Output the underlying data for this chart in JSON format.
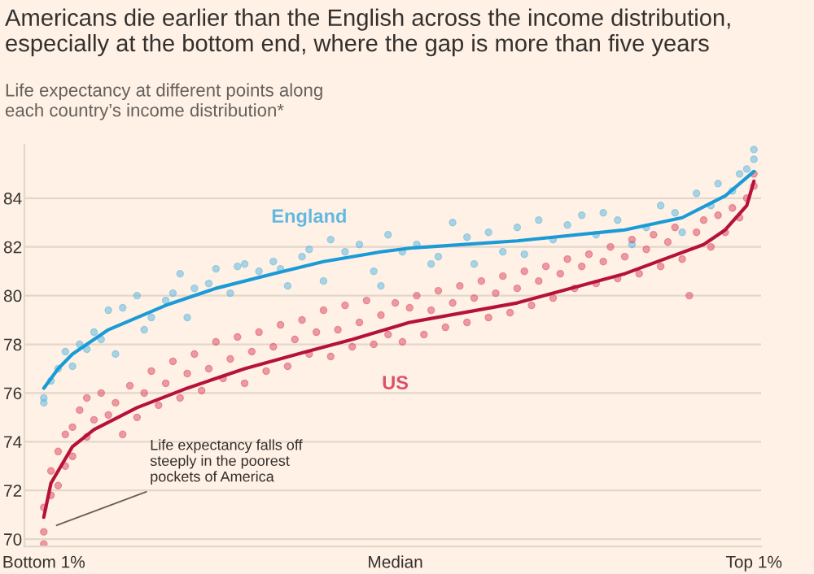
{
  "chart_data": {
    "type": "scatter",
    "title": "Americans die earlier than the English across the income distribution, especially at the bottom end, where the gap is more than five years",
    "subtitle": "Life expectancy at different points along\neach country’s income distribution*",
    "categories": [
      "Bottom 1%",
      null,
      null,
      null,
      null,
      null,
      null,
      null,
      null,
      null,
      null,
      null,
      null,
      null,
      null,
      null,
      null,
      null,
      null,
      null,
      null,
      null,
      null,
      null,
      null,
      null,
      null,
      null,
      null,
      null,
      null,
      null,
      null,
      null,
      null,
      null,
      null,
      null,
      null,
      null,
      null,
      null,
      null,
      null,
      null,
      null,
      null,
      null,
      null,
      "Median",
      null,
      null,
      null,
      null,
      null,
      null,
      null,
      null,
      null,
      null,
      null,
      null,
      null,
      null,
      null,
      null,
      null,
      null,
      null,
      null,
      null,
      null,
      null,
      null,
      null,
      null,
      null,
      null,
      null,
      null,
      null,
      null,
      null,
      null,
      null,
      null,
      null,
      null,
      null,
      null,
      null,
      null,
      null,
      null,
      null,
      null,
      null,
      null,
      null,
      "Top 1%"
    ],
    "ylim": [
      69.7,
      86.2
    ],
    "yticks": [
      70,
      72,
      74,
      76,
      78,
      80,
      82,
      84
    ],
    "grid": "y",
    "marker": "circle",
    "annotations": [
      "Life expectancy falls off\nsteeply in the poorest\npockets of America"
    ],
    "series": [
      {
        "name": "England",
        "color": "#62b8e0",
        "values": [
          75.6,
          76.5,
          77.0,
          77.7,
          77.1,
          78.0,
          77.8,
          78.5,
          78.2,
          79.4,
          77.6,
          79.5,
          null,
          80.0,
          78.6,
          79.1,
          null,
          79.8,
          80.1,
          80.9,
          79.1,
          80.3,
          null,
          80.5,
          81.1,
          null,
          80.1,
          81.2,
          81.3,
          null,
          81.0,
          null,
          81.4,
          81.1,
          80.4,
          null,
          81.6,
          81.9,
          null,
          80.6,
          82.3,
          null,
          81.8,
          null,
          82.1,
          null,
          81.0,
          80.4,
          82.5,
          null,
          81.8,
          null,
          82.1,
          null,
          81.3,
          81.6,
          null,
          83.0,
          null,
          82.4,
          81.3,
          null,
          82.6,
          null,
          81.8,
          null,
          82.8,
          81.7,
          null,
          83.1,
          null,
          82.3,
          null,
          82.9,
          null,
          83.3,
          null,
          82.5,
          83.4,
          null,
          83.1,
          null,
          82.1,
          null,
          82.8,
          null,
          83.7,
          null,
          83.4,
          82.6,
          null,
          84.2,
          null,
          83.7,
          84.6,
          null,
          84.3,
          85.0,
          85.2,
          85.6
        ]
      },
      {
        "color": "#62b8e0",
        "values": [
          75.8,
          null,
          null,
          null,
          null,
          null,
          null,
          null,
          null,
          null,
          null,
          null,
          null,
          null,
          null,
          null,
          null,
          null,
          null,
          null,
          null,
          null,
          null,
          null,
          null,
          null,
          null,
          null,
          null,
          null,
          null,
          null,
          null,
          null,
          null,
          null,
          null,
          null,
          null,
          null,
          null,
          null,
          null,
          null,
          null,
          null,
          null,
          null,
          null,
          null,
          null,
          null,
          null,
          null,
          null,
          null,
          null,
          null,
          null,
          null,
          null,
          null,
          null,
          null,
          null,
          null,
          null,
          null,
          null,
          null,
          null,
          null,
          null,
          null,
          null,
          null,
          null,
          null,
          null,
          null,
          null,
          null,
          null,
          null,
          null,
          null,
          null,
          null,
          null,
          null,
          null,
          null,
          null,
          null,
          null,
          null,
          null,
          null,
          null,
          86.0
        ]
      },
      {
        "name": "US",
        "color": "#dc5068",
        "values": [
          69.8,
          71.8,
          73.6,
          74.3,
          74.6,
          75.3,
          74.2,
          74.9,
          76.0,
          75.1,
          75.6,
          74.3,
          76.3,
          75.0,
          76.0,
          76.9,
          75.5,
          76.4,
          77.3,
          75.8,
          76.8,
          77.6,
          76.1,
          77.0,
          78.1,
          76.6,
          77.4,
          78.3,
          76.4,
          77.7,
          78.5,
          76.9,
          77.9,
          78.8,
          77.1,
          78.2,
          79.0,
          77.6,
          78.5,
          79.4,
          77.5,
          78.6,
          79.6,
          77.9,
          78.9,
          79.8,
          78.0,
          79.2,
          78.4,
          79.7,
          78.1,
          79.5,
          80.0,
          78.4,
          79.4,
          80.2,
          78.7,
          79.7,
          80.4,
          78.9,
          79.9,
          80.6,
          79.1,
          80.1,
          80.8,
          79.3,
          80.3,
          81.0,
          79.6,
          80.6,
          81.2,
          79.9,
          80.9,
          81.5,
          80.3,
          81.2,
          81.7,
          80.5,
          81.4,
          82.0,
          80.7,
          81.6,
          82.3,
          80.9,
          81.9,
          82.5,
          81.2,
          82.2,
          82.8,
          81.5,
          80.0,
          82.6,
          83.1,
          82.0,
          83.3,
          82.6,
          83.6,
          83.2,
          84.0,
          84.5
        ]
      },
      {
        "color": "#dc5068",
        "values": [
          70.3,
          72.8,
          72.2,
          73.0,
          73.4,
          null,
          75.8,
          null,
          null,
          null,
          null,
          null,
          null,
          null,
          null,
          null,
          null,
          null,
          null,
          null,
          null,
          null,
          null,
          null,
          null,
          null,
          null,
          null,
          null,
          null,
          null,
          null,
          null,
          null,
          null,
          null,
          null,
          null,
          null,
          null,
          null,
          null,
          null,
          null,
          null,
          null,
          null,
          null,
          null,
          null,
          null,
          null,
          null,
          null,
          null,
          null,
          null,
          null,
          null,
          null,
          null,
          null,
          null,
          null,
          null,
          null,
          null,
          null,
          null,
          null,
          null,
          null,
          null,
          null,
          null,
          null,
          null,
          null,
          null,
          null,
          null,
          null,
          null,
          null,
          null,
          null,
          null,
          null,
          null,
          null,
          null,
          null,
          null,
          null,
          null,
          null,
          null,
          null,
          null,
          85.0
        ]
      },
      {
        "color": "#dc5068",
        "values": [
          71.3,
          null,
          null,
          null,
          null,
          null,
          null,
          null,
          null,
          null,
          null,
          null,
          null,
          null,
          null,
          null,
          null,
          null,
          null,
          null,
          null,
          null,
          null,
          null,
          null,
          null,
          null,
          null,
          null,
          null,
          null,
          null,
          null,
          null,
          null,
          null,
          null,
          null,
          null,
          null,
          null,
          null,
          null,
          null,
          null,
          null,
          null,
          null,
          null,
          null,
          null,
          null,
          null,
          null,
          null,
          null,
          null,
          null,
          null,
          null,
          null,
          null,
          null,
          null,
          null,
          null,
          null,
          null,
          null,
          null,
          null,
          null,
          null,
          null,
          null,
          null,
          null,
          null,
          null,
          null,
          null,
          null,
          null,
          null,
          null,
          null,
          null,
          null,
          null,
          null,
          null,
          null,
          null,
          null,
          null,
          null,
          null,
          null,
          null,
          null
        ]
      },
      {
        "type": "line",
        "marker": "none",
        "color": "#1a9bd7",
        "values": [
          76.2,
          null,
          77.0,
          null,
          77.6,
          null,
          null,
          null,
          null,
          78.6,
          null,
          null,
          null,
          null,
          null,
          null,
          null,
          79.6,
          null,
          null,
          null,
          null,
          null,
          null,
          80.3,
          null,
          null,
          null,
          null,
          null,
          null,
          null,
          80.9,
          null,
          null,
          null,
          null,
          null,
          null,
          81.4,
          null,
          null,
          null,
          null,
          null,
          null,
          null,
          81.8,
          null,
          null,
          null,
          81.95,
          null,
          null,
          null,
          null,
          null,
          null,
          null,
          null,
          null,
          null,
          null,
          null,
          null,
          null,
          82.25,
          null,
          null,
          null,
          null,
          null,
          null,
          null,
          null,
          null,
          null,
          null,
          null,
          null,
          null,
          82.7,
          null,
          null,
          null,
          null,
          null,
          null,
          null,
          83.2,
          null,
          null,
          null,
          null,
          null,
          84.1,
          null,
          null,
          null,
          85.1
        ]
      },
      {
        "type": "line",
        "marker": "none",
        "color": "#b5123a",
        "values": [
          70.9,
          72.3,
          null,
          null,
          73.8,
          null,
          null,
          74.5,
          null,
          null,
          null,
          null,
          null,
          75.4,
          null,
          null,
          null,
          null,
          null,
          null,
          76.2,
          null,
          null,
          null,
          null,
          null,
          null,
          null,
          77.0,
          null,
          null,
          null,
          null,
          null,
          null,
          null,
          77.65,
          null,
          null,
          null,
          null,
          null,
          null,
          78.2,
          null,
          null,
          null,
          null,
          null,
          null,
          null,
          78.9,
          null,
          null,
          null,
          null,
          null,
          null,
          null,
          null,
          null,
          null,
          null,
          null,
          null,
          null,
          79.7,
          null,
          null,
          null,
          null,
          null,
          null,
          null,
          null,
          null,
          null,
          null,
          null,
          null,
          null,
          80.9,
          null,
          null,
          null,
          null,
          null,
          null,
          null,
          null,
          null,
          null,
          82.1,
          null,
          null,
          82.7,
          null,
          null,
          83.7,
          84.7
        ]
      }
    ]
  }
}
